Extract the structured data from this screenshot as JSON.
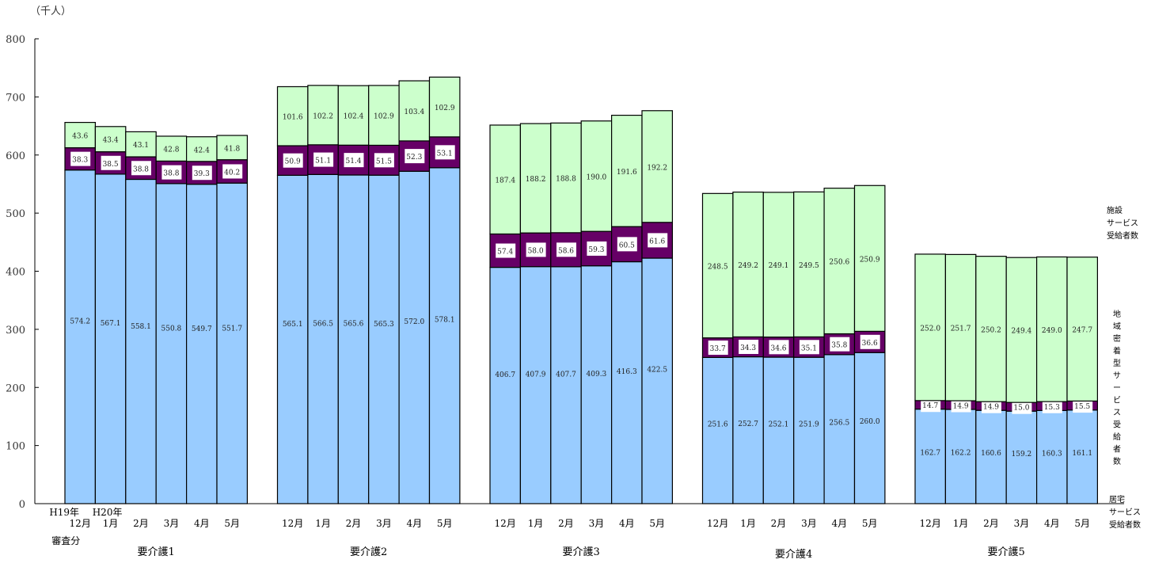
{
  "chart_data": {
    "type": "bar",
    "stacked": true,
    "unit_label": "（千人）",
    "ylim": [
      0,
      800
    ],
    "yticks": [
      0,
      100,
      200,
      300,
      400,
      500,
      600,
      700,
      800
    ],
    "grid": false,
    "first_category_prefix": "H19年",
    "first_category_suffix": "審査分",
    "second_category_prefix": "H20年",
    "months": [
      "12月",
      "1月",
      "2月",
      "3月",
      "4月",
      "5月"
    ],
    "groups": [
      {
        "name": "要介護1",
        "home": [
          574.2,
          567.1,
          558.1,
          550.8,
          549.7,
          551.7
        ],
        "community": [
          38.3,
          38.5,
          38.8,
          38.8,
          39.3,
          40.2
        ],
        "facility": [
          43.6,
          43.4,
          43.1,
          42.8,
          42.4,
          41.8
        ]
      },
      {
        "name": "要介護2",
        "home": [
          565.1,
          566.5,
          565.6,
          565.3,
          572.0,
          578.1
        ],
        "community": [
          50.9,
          51.1,
          51.4,
          51.5,
          52.3,
          53.1
        ],
        "facility": [
          101.6,
          102.2,
          102.4,
          102.9,
          103.4,
          102.9
        ]
      },
      {
        "name": "要介護3",
        "home": [
          406.7,
          407.9,
          407.7,
          409.3,
          416.3,
          422.5
        ],
        "community": [
          57.4,
          58.0,
          58.6,
          59.3,
          60.5,
          61.6
        ],
        "facility": [
          187.4,
          188.2,
          188.8,
          190.0,
          191.6,
          192.2
        ]
      },
      {
        "name": "要介護4",
        "home": [
          251.6,
          252.7,
          252.1,
          251.9,
          256.5,
          260.0
        ],
        "community": [
          33.7,
          34.3,
          34.6,
          35.1,
          35.8,
          36.6
        ],
        "facility": [
          248.5,
          249.2,
          249.1,
          249.5,
          250.6,
          250.9
        ]
      },
      {
        "name": "要介護5",
        "home": [
          162.7,
          162.2,
          160.6,
          159.2,
          160.3,
          161.1
        ],
        "community": [
          14.7,
          14.9,
          14.9,
          15.0,
          15.3,
          15.5
        ],
        "facility": [
          252.0,
          251.7,
          250.2,
          249.4,
          249.0,
          247.7
        ]
      }
    ],
    "series": [
      {
        "key": "home",
        "name_lines": [
          "居宅",
          "サービス",
          "受給者数"
        ],
        "color": "#99ccff"
      },
      {
        "key": "community",
        "name_lines": [
          "地",
          "域",
          "密",
          "着",
          "型",
          "サ",
          "ー",
          "ビ",
          "ス",
          "受",
          "給",
          "者",
          "数"
        ],
        "color": "#660066"
      },
      {
        "key": "facility",
        "name_lines": [
          "施設",
          "サービス",
          "受給者数"
        ],
        "color": "#ccffcc"
      }
    ]
  }
}
